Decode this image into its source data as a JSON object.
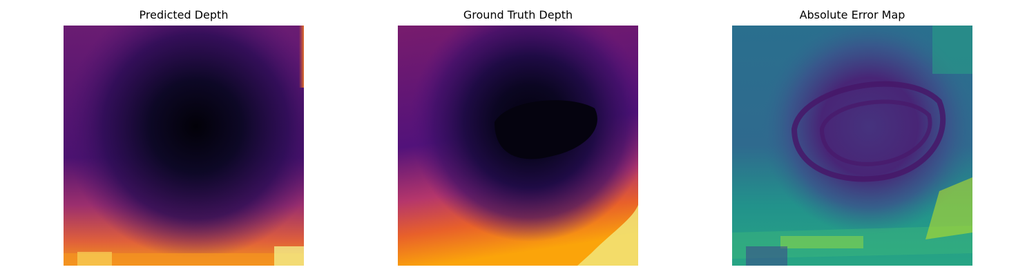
{
  "panels": [
    {
      "title": "Predicted Depth",
      "colormap": "inferno"
    },
    {
      "title": "Ground Truth Depth",
      "colormap": "inferno"
    },
    {
      "title": "Absolute Error Map",
      "colormap": "viridis"
    }
  ],
  "colors": {
    "inferno_dark": "#050310",
    "inferno_purple": "#4a1670",
    "inferno_magenta": "#a2356f",
    "inferno_orange": "#f57d15",
    "inferno_yellow": "#f0f28c",
    "viridis_purple": "#46186b",
    "viridis_blue": "#31688e",
    "viridis_teal": "#21918c",
    "viridis_green": "#5ec962",
    "viridis_yellow": "#d4e22a"
  }
}
